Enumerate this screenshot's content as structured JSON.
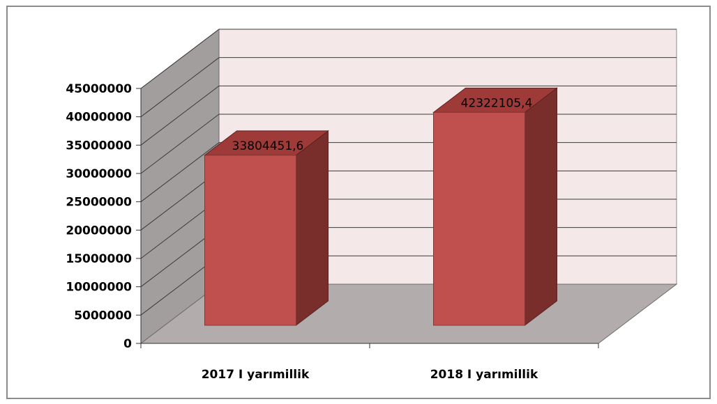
{
  "chart_data": {
    "type": "bar",
    "style": "3d-column",
    "categories": [
      "2017 I yarımillik",
      "2018 I yarımillik"
    ],
    "values": [
      33804451.6,
      42322105.4
    ],
    "data_labels": [
      "33804451,6",
      "42322105,4"
    ],
    "ylim": [
      0,
      45000000
    ],
    "ticks": [
      0,
      5000000,
      10000000,
      15000000,
      20000000,
      25000000,
      30000000,
      35000000,
      40000000,
      45000000
    ],
    "tick_labels": [
      "0",
      "5000000",
      "10000000",
      "15000000",
      "20000000",
      "25000000",
      "30000000",
      "35000000",
      "40000000",
      "45000000"
    ],
    "title": "",
    "xlabel": "",
    "ylabel": "",
    "grid": true,
    "legend": "none",
    "colors": {
      "bar_front": "#c0504d",
      "bar_side": "#7a2e2c",
      "bar_top": "#9e3b39",
      "back_wall": "#f5e8e8",
      "side_wall": "#a39e9e",
      "floor": "#b3acac",
      "gridline": "#3a3a3a"
    }
  }
}
